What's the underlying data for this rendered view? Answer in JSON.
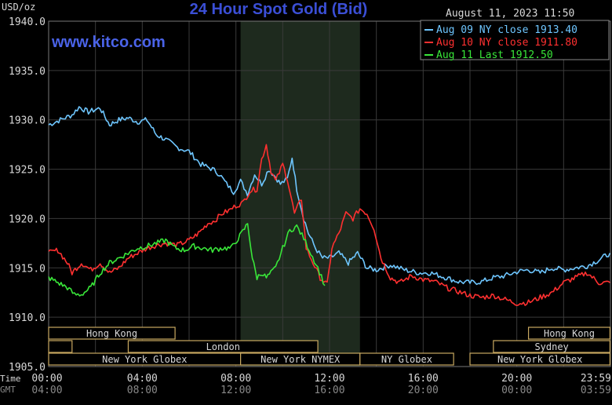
{
  "header": {
    "unit_label": "USD/oz",
    "title": "24 Hour Spot Gold (Bid)",
    "timestamp": "August 11, 2023 11:50",
    "watermark": "www.kitco.com"
  },
  "colors": {
    "background": "#000000",
    "grid": "#3a3a3a",
    "title": "#3b4fd6",
    "watermark": "#4a63e8",
    "text": "#d8d8d8",
    "aug09": "#6ec6ff",
    "aug10": "#ff3030",
    "aug11": "#39e639",
    "session_box": "#c8a860",
    "nymex_shade": "#1e2a1e"
  },
  "chart_data": {
    "type": "line",
    "title": "24 Hour Spot Gold (Bid)",
    "ylabel": "USD/oz",
    "ylim": [
      1905.0,
      1940.0
    ],
    "yticks": [
      "1940.0",
      "1935.0",
      "1930.0",
      "1925.0",
      "1920.0",
      "1915.0",
      "1910.0",
      "1905.0"
    ],
    "x_hours": [
      0,
      4,
      8,
      12,
      16,
      20,
      23.98
    ],
    "xticks_time": [
      "00:00",
      "04:00",
      "08:00",
      "12:00",
      "16:00",
      "20:00",
      "23:59"
    ],
    "xticks_gmt": [
      "04:00",
      "08:00",
      "12:00",
      "16:00",
      "20:00",
      "00:00",
      "03:59"
    ],
    "x_axis_row_labels": [
      "Time",
      "GMT"
    ],
    "legend": [
      {
        "label": "Aug 09 NY close 1913.40",
        "series": "aug09"
      },
      {
        "label": "Aug 10 NY close 1911.80",
        "series": "aug10"
      },
      {
        "label": "Aug 11 Last 1912.50",
        "series": "aug11"
      }
    ],
    "series": [
      {
        "name": "Aug 09 NY close 1913.40",
        "key": "aug09",
        "x": [
          0,
          0.5,
          1,
          1.3,
          1.7,
          2.2,
          2.6,
          3.0,
          3.4,
          3.8,
          4.2,
          4.6,
          5.0,
          5.5,
          6.0,
          6.5,
          7.0,
          7.3,
          7.6,
          7.9,
          8.2,
          8.5,
          8.8,
          9.1,
          9.4,
          9.7,
          9.9,
          10.2,
          10.4,
          10.6,
          10.9,
          11.1,
          11.4,
          11.7,
          12.0,
          12.4,
          12.8,
          13.2,
          13.6,
          14.0,
          14.6,
          15.2,
          15.8,
          16.3,
          17.0,
          17.5,
          18.0,
          18.5,
          19.0,
          19.5,
          20.0,
          20.5,
          21.0,
          21.5,
          22.0,
          22.5,
          23.0,
          23.5,
          23.98
        ],
        "y": [
          1929.5,
          1930.0,
          1930.5,
          1931.3,
          1930.8,
          1931.2,
          1929.5,
          1930.0,
          1930.2,
          1929.8,
          1930.0,
          1928.5,
          1928.0,
          1927.2,
          1926.8,
          1925.5,
          1925.0,
          1924.5,
          1923.5,
          1922.7,
          1923.8,
          1922.5,
          1924.5,
          1923.5,
          1925.0,
          1924.2,
          1923.5,
          1924.0,
          1926.2,
          1923.0,
          1920.0,
          1918.5,
          1917.0,
          1916.0,
          1916.0,
          1916.5,
          1915.5,
          1916.5,
          1915.0,
          1914.8,
          1915.3,
          1914.8,
          1914.5,
          1914.5,
          1914.0,
          1913.6,
          1913.5,
          1913.6,
          1914.0,
          1914.2,
          1914.6,
          1914.8,
          1914.5,
          1915.0,
          1914.8,
          1915.0,
          1915.2,
          1915.8,
          1916.5
        ]
      },
      {
        "name": "Aug 10 NY close 1911.80",
        "key": "aug10",
        "x": [
          0,
          0.4,
          0.8,
          1.0,
          1.4,
          1.8,
          2.2,
          2.6,
          3.0,
          3.4,
          3.8,
          4.2,
          4.6,
          5.0,
          5.5,
          6.0,
          6.4,
          6.8,
          7.1,
          7.4,
          7.7,
          8.0,
          8.3,
          8.6,
          8.9,
          9.1,
          9.3,
          9.5,
          9.7,
          10.0,
          10.2,
          10.5,
          10.8,
          11.0,
          11.3,
          11.6,
          11.9,
          12.1,
          12.4,
          12.7,
          13.0,
          13.3,
          13.6,
          13.9,
          14.2,
          14.6,
          15.0,
          15.5,
          16.0,
          16.5,
          17.0,
          17.5,
          18.0,
          18.5,
          19.0,
          19.5,
          20.0,
          20.5,
          21.0,
          21.5,
          22.0,
          22.5,
          23.0,
          23.5,
          23.98
        ],
        "y": [
          1916.5,
          1916.8,
          1915.5,
          1914.5,
          1915.5,
          1914.8,
          1915.5,
          1914.5,
          1915.0,
          1916.0,
          1916.5,
          1917.0,
          1917.3,
          1917.5,
          1917.3,
          1917.8,
          1918.5,
          1919.5,
          1919.8,
          1920.5,
          1920.8,
          1921.3,
          1921.6,
          1922.8,
          1923.0,
          1926.0,
          1927.5,
          1924.8,
          1923.8,
          1925.5,
          1924.0,
          1920.5,
          1922.0,
          1917.0,
          1915.5,
          1914.0,
          1913.3,
          1917.0,
          1918.5,
          1920.5,
          1920.0,
          1921.0,
          1920.5,
          1919.0,
          1916.0,
          1914.0,
          1913.5,
          1914.2,
          1913.8,
          1913.6,
          1913.0,
          1912.6,
          1912.2,
          1912.0,
          1912.2,
          1911.8,
          1911.4,
          1911.5,
          1912.0,
          1912.5,
          1913.5,
          1914.0,
          1914.5,
          1913.5,
          1913.5
        ]
      },
      {
        "name": "Aug 11 Last 1912.50",
        "key": "aug11",
        "x": [
          0,
          0.4,
          0.8,
          1.1,
          1.4,
          1.8,
          2.2,
          2.6,
          3.0,
          3.4,
          3.8,
          4.2,
          4.6,
          5.0,
          5.4,
          5.8,
          6.2,
          6.6,
          7.0,
          7.4,
          7.8,
          8.1,
          8.3,
          8.5,
          8.7,
          8.9,
          9.1,
          9.3,
          9.5,
          9.7,
          10.0,
          10.3,
          10.6,
          10.9,
          11.2,
          11.5,
          11.8
        ],
        "y": [
          1914.0,
          1913.5,
          1913.0,
          1912.3,
          1912.3,
          1913.0,
          1914.5,
          1915.5,
          1916.0,
          1916.5,
          1917.0,
          1917.2,
          1917.5,
          1917.8,
          1917.0,
          1916.8,
          1917.2,
          1917.0,
          1916.8,
          1917.0,
          1917.0,
          1918.0,
          1918.7,
          1919.5,
          1916.0,
          1914.0,
          1914.5,
          1914.0,
          1914.5,
          1915.0,
          1917.0,
          1918.8,
          1919.2,
          1918.0,
          1916.5,
          1915.0,
          1913.2
        ]
      }
    ],
    "sessions": [
      {
        "label": "Hong Kong",
        "row": 0,
        "start": 0,
        "end": 5.4
      },
      {
        "label": "",
        "row": 1,
        "start": 0,
        "end": 1.0
      },
      {
        "label": "London",
        "row": 1,
        "start": 3.4,
        "end": 11.5
      },
      {
        "label": "New York Globex",
        "row": 2,
        "start": 0,
        "end": 8.2
      },
      {
        "label": "New York NYMEX",
        "row": 2,
        "start": 8.2,
        "end": 13.3
      },
      {
        "label": "NY Globex",
        "row": 2,
        "start": 13.3,
        "end": 17.3
      },
      {
        "label": "Hong Kong",
        "row": 0,
        "start": 20.5,
        "end": 23.98
      },
      {
        "label": "Sydney",
        "row": 1,
        "start": 19.0,
        "end": 23.98
      },
      {
        "label": "New York Globex",
        "row": 2,
        "start": 18.0,
        "end": 23.98
      }
    ],
    "nymex_shade": {
      "start": 8.2,
      "end": 13.3
    },
    "grid": true,
    "legend_position": "top-right"
  }
}
